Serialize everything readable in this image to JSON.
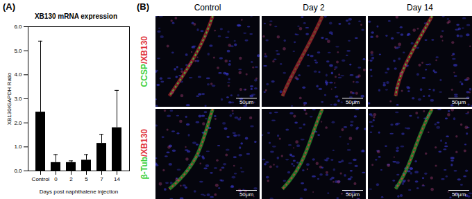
{
  "chart_data": {
    "type": "bar",
    "panel_label": "(A)",
    "title": "XB130 mRNA expression",
    "x_label": "Days post naphthalene injection",
    "y_label": "XB130/GAPDH Ratio",
    "categories": [
      "Control",
      "0",
      "2",
      "5",
      "7",
      "14"
    ],
    "values": [
      2.45,
      0.35,
      0.35,
      0.45,
      1.15,
      1.8
    ],
    "errors": [
      2.95,
      0.33,
      0.07,
      0.23,
      0.37,
      1.55
    ],
    "color": "#000000",
    "ylim": [
      0,
      6
    ],
    "yticks": [
      0,
      1,
      2,
      3,
      4,
      5,
      6
    ]
  },
  "panel_b": {
    "panel_label": "(B)",
    "columns": [
      "Control",
      "Day 2",
      "Day 14"
    ],
    "rows": [
      "CCSP/XB130",
      "β-Tub/XB130"
    ],
    "scale_bar": "50μm"
  }
}
